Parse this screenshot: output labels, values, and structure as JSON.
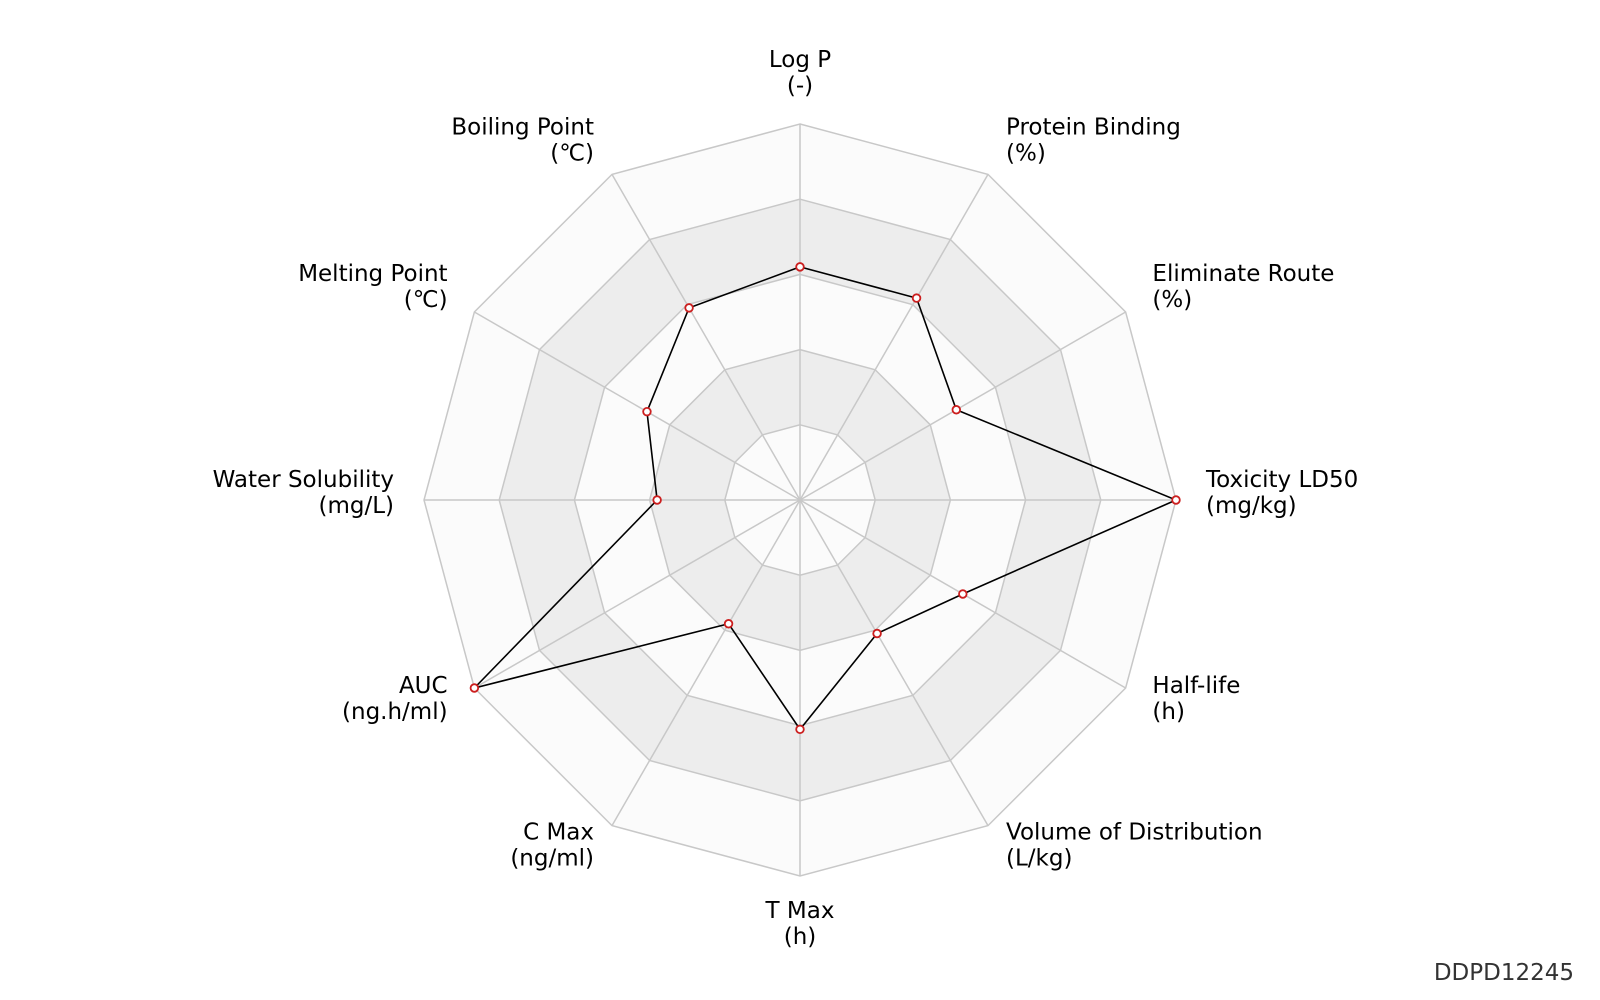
{
  "chart_id": "DDPD12245",
  "colors": {
    "band_light": "#fbfbfb",
    "band_dark": "#ededed",
    "grid": "#c8c8c8",
    "line": "#000000",
    "marker": "#cc1f1f"
  },
  "chart_data": {
    "type": "radar",
    "axes": [
      {
        "name": "Log P",
        "unit": "(-)"
      },
      {
        "name": "Protein Binding",
        "unit": "(%)"
      },
      {
        "name": "Eliminate Route",
        "unit": "(%)"
      },
      {
        "name": "Toxicity LD50",
        "unit": "(mg/kg)"
      },
      {
        "name": "Half-life",
        "unit": "(h)"
      },
      {
        "name": "Volume of Distribution",
        "unit": "(L/kg)"
      },
      {
        "name": "T Max",
        "unit": "(h)"
      },
      {
        "name": "C Max",
        "unit": "(ng/ml)"
      },
      {
        "name": "AUC",
        "unit": "(ng.h/ml)"
      },
      {
        "name": "Water Solubility",
        "unit": "(mg/L)"
      },
      {
        "name": "Melting Point",
        "unit": "(℃)"
      },
      {
        "name": "Boiling Point",
        "unit": "(℃)"
      }
    ],
    "values": [
      0.62,
      0.62,
      0.48,
      1.0,
      0.5,
      0.41,
      0.61,
      0.38,
      1.0,
      0.38,
      0.47,
      0.59
    ],
    "rmax": 1.0,
    "rings": [
      0.2,
      0.4,
      0.6,
      0.8,
      1.0
    ],
    "grid": true,
    "legend": false
  }
}
